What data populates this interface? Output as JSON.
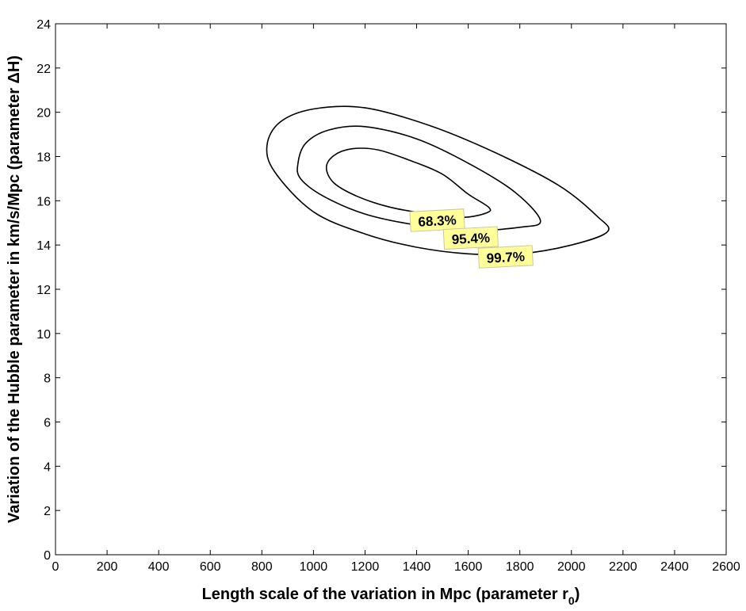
{
  "chart_data": {
    "type": "contour",
    "title": "",
    "xlabel": "Length scale of the variation in Mpc (parameter r",
    "xlabel_sub": "0",
    "xlabel_end": ")",
    "ylabel": "Variation of the Hubble parameter in km/s/Mpc (parameter ΔH)",
    "xlim": [
      0,
      2600
    ],
    "ylim": [
      0,
      24
    ],
    "xticks": [
      0,
      200,
      400,
      600,
      800,
      1000,
      1200,
      1400,
      1600,
      1800,
      2000,
      2200,
      2400,
      2600
    ],
    "yticks": [
      0,
      2,
      4,
      6,
      8,
      10,
      12,
      14,
      16,
      18,
      20,
      22,
      24
    ],
    "grid": false,
    "label_box_color": "#ffff99",
    "line_color": "#000000",
    "contours": [
      {
        "label": "68.3%",
        "label_at": [
          1480,
          15.1
        ],
        "points": [
          [
            1050,
            17.5
          ],
          [
            1080,
            18.05
          ],
          [
            1150,
            18.35
          ],
          [
            1250,
            18.3
          ],
          [
            1380,
            17.8
          ],
          [
            1500,
            17.2
          ],
          [
            1600,
            16.3
          ],
          [
            1680,
            15.7
          ],
          [
            1670,
            15.45
          ],
          [
            1580,
            15.25
          ],
          [
            1450,
            15.4
          ],
          [
            1300,
            15.7
          ],
          [
            1170,
            16.2
          ],
          [
            1080,
            16.8
          ]
        ]
      },
      {
        "label": "95.4%",
        "label_at": [
          1610,
          14.3
        ],
        "points": [
          [
            940,
            17.7
          ],
          [
            970,
            18.6
          ],
          [
            1060,
            19.2
          ],
          [
            1200,
            19.35
          ],
          [
            1400,
            18.8
          ],
          [
            1600,
            17.7
          ],
          [
            1780,
            16.4
          ],
          [
            1880,
            15.1
          ],
          [
            1800,
            14.8
          ],
          [
            1600,
            14.65
          ],
          [
            1400,
            14.9
          ],
          [
            1200,
            15.4
          ],
          [
            1040,
            16.2
          ],
          [
            950,
            17
          ]
        ]
      },
      {
        "label": "99.7%",
        "label_at": [
          1745,
          13.45
        ],
        "points": [
          [
            820,
            18.5
          ],
          [
            870,
            19.55
          ],
          [
            1000,
            20.15
          ],
          [
            1200,
            20.2
          ],
          [
            1450,
            19.4
          ],
          [
            1700,
            18.2
          ],
          [
            1950,
            16.7
          ],
          [
            2100,
            15.3
          ],
          [
            2140,
            14.6
          ],
          [
            2000,
            14
          ],
          [
            1800,
            13.6
          ],
          [
            1600,
            13.6
          ],
          [
            1400,
            13.9
          ],
          [
            1200,
            14.5
          ],
          [
            1000,
            15.5
          ],
          [
            850,
            17.3
          ]
        ]
      }
    ]
  }
}
